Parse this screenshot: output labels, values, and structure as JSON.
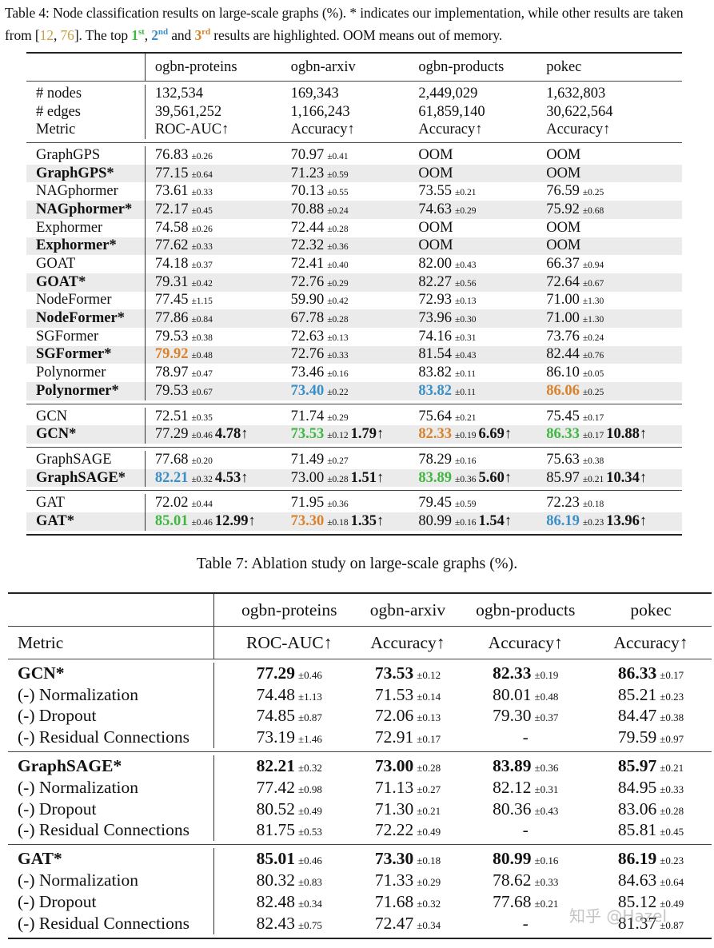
{
  "table4": {
    "caption": {
      "part1": "Table 4: Node classification results on large-scale graphs (%). * indicates our implementation, while other results are taken from [",
      "cite1": "12",
      "sep": ", ",
      "cite2": "76",
      "part2": "]. The top ",
      "first": "1",
      "first_sup": "st",
      "comma": ", ",
      "second": "2",
      "second_sup": "nd",
      "and": " and ",
      "third": "3",
      "third_sup": "rd",
      "part3": " results are highlighted. OOM means out of memory."
    },
    "columns": [
      "ogbn-proteins",
      "ogbn-arxiv",
      "ogbn-products",
      "pokec"
    ],
    "stats": [
      {
        "label": "# nodes",
        "values": [
          "132,534",
          "169,343",
          "2,449,029",
          "1,632,803"
        ]
      },
      {
        "label": "# edges",
        "values": [
          "39,561,252",
          "1,166,243",
          "61,859,140",
          "30,622,564"
        ]
      },
      {
        "label": "Metric",
        "values": [
          "ROC-AUC↑",
          "Accuracy↑",
          "Accuracy↑",
          "Accuracy↑"
        ]
      }
    ],
    "transformers": [
      {
        "name": "GraphGPS",
        "cells": [
          [
            "76.83",
            "±0.26"
          ],
          [
            "70.97",
            "±0.41"
          ],
          [
            "OOM",
            ""
          ],
          [
            "OOM",
            ""
          ]
        ]
      },
      {
        "name": "GraphGPS*",
        "cells": [
          [
            "77.15",
            "±0.64"
          ],
          [
            "71.23",
            "±0.59"
          ],
          [
            "OOM",
            ""
          ],
          [
            "OOM",
            ""
          ]
        ]
      },
      {
        "name": "NAGphormer",
        "cells": [
          [
            "73.61",
            "±0.33"
          ],
          [
            "70.13",
            "±0.55"
          ],
          [
            "73.55",
            "±0.21"
          ],
          [
            "76.59",
            "±0.25"
          ]
        ]
      },
      {
        "name": "NAGphormer*",
        "cells": [
          [
            "72.17",
            "±0.45"
          ],
          [
            "70.88",
            "±0.24"
          ],
          [
            "74.63",
            "±0.29"
          ],
          [
            "75.92",
            "±0.68"
          ]
        ]
      },
      {
        "name": "Exphormer",
        "cells": [
          [
            "74.58",
            "±0.26"
          ],
          [
            "72.44",
            "±0.28"
          ],
          [
            "OOM",
            ""
          ],
          [
            "OOM",
            ""
          ]
        ]
      },
      {
        "name": "Exphormer*",
        "cells": [
          [
            "77.62",
            "±0.33"
          ],
          [
            "72.32",
            "±0.36"
          ],
          [
            "OOM",
            ""
          ],
          [
            "OOM",
            ""
          ]
        ]
      },
      {
        "name": "GOAT",
        "cells": [
          [
            "74.18",
            "±0.37"
          ],
          [
            "72.41",
            "±0.40"
          ],
          [
            "82.00",
            "±0.43"
          ],
          [
            "66.37",
            "±0.94"
          ]
        ]
      },
      {
        "name": "GOAT*",
        "cells": [
          [
            "79.31",
            "±0.42"
          ],
          [
            "72.76",
            "±0.29"
          ],
          [
            "82.27",
            "±0.56"
          ],
          [
            "72.64",
            "±0.67"
          ]
        ]
      },
      {
        "name": "NodeFormer",
        "cells": [
          [
            "77.45",
            "±1.15"
          ],
          [
            "59.90",
            "±0.42"
          ],
          [
            "72.93",
            "±0.13"
          ],
          [
            "71.00",
            "±1.30"
          ]
        ]
      },
      {
        "name": "NodeFormer*",
        "cells": [
          [
            "77.86",
            "±0.84"
          ],
          [
            "67.78",
            "±0.28"
          ],
          [
            "73.96",
            "±0.30"
          ],
          [
            "71.00",
            "±1.30"
          ]
        ]
      },
      {
        "name": "SGFormer",
        "cells": [
          [
            "79.53",
            "±0.38"
          ],
          [
            "72.63",
            "±0.13"
          ],
          [
            "74.16",
            "±0.31"
          ],
          [
            "73.76",
            "±0.24"
          ]
        ]
      },
      {
        "name": "SGFormer*",
        "cells": [
          [
            "79.92",
            "±0.48"
          ],
          [
            "72.76",
            "±0.33"
          ],
          [
            "81.54",
            "±0.43"
          ],
          [
            "82.44",
            "±0.76"
          ]
        ]
      },
      {
        "name": "Polynormer",
        "cells": [
          [
            "78.97",
            "±0.47"
          ],
          [
            "73.46",
            "±0.16"
          ],
          [
            "83.82",
            "±0.11"
          ],
          [
            "86.10",
            "±0.05"
          ]
        ]
      },
      {
        "name": "Polynormer*",
        "cells": [
          [
            "79.53",
            "±0.67"
          ],
          [
            "73.40",
            "±0.22"
          ],
          [
            "83.82",
            "±0.11"
          ],
          [
            "86.06",
            "±0.25"
          ]
        ]
      }
    ],
    "gnn_groups": [
      [
        {
          "name": "GCN",
          "cells": [
            [
              "72.51",
              "±0.35",
              ""
            ],
            [
              "71.74",
              "±0.29",
              ""
            ],
            [
              "75.64",
              "±0.21",
              ""
            ],
            [
              "75.45",
              "±0.17",
              ""
            ]
          ]
        },
        {
          "name": "GCN*",
          "cells": [
            [
              "77.29",
              "±0.46",
              "4.78↑"
            ],
            [
              "73.53",
              "±0.12",
              "1.79↑"
            ],
            [
              "82.33",
              "±0.19",
              "6.69↑"
            ],
            [
              "86.33",
              "±0.17",
              "10.88↑"
            ]
          ]
        }
      ],
      [
        {
          "name": "GraphSAGE",
          "cells": [
            [
              "77.68",
              "±0.20",
              ""
            ],
            [
              "71.49",
              "±0.27",
              ""
            ],
            [
              "78.29",
              "±0.16",
              ""
            ],
            [
              "75.63",
              "±0.38",
              ""
            ]
          ]
        },
        {
          "name": "GraphSAGE*",
          "cells": [
            [
              "82.21",
              "±0.32",
              "4.53↑"
            ],
            [
              "73.00",
              "±0.28",
              "1.51↑"
            ],
            [
              "83.89",
              "±0.36",
              "5.60↑"
            ],
            [
              "85.97",
              "±0.21",
              "10.34↑"
            ]
          ]
        }
      ],
      [
        {
          "name": "GAT",
          "cells": [
            [
              "72.02",
              "±0.44",
              ""
            ],
            [
              "71.95",
              "±0.36",
              ""
            ],
            [
              "79.45",
              "±0.59",
              ""
            ],
            [
              "72.23",
              "±0.18",
              ""
            ]
          ]
        },
        {
          "name": "GAT*",
          "cells": [
            [
              "85.01",
              "±0.46",
              "12.99↑"
            ],
            [
              "73.30",
              "±0.18",
              "1.35↑"
            ],
            [
              "80.99",
              "±0.16",
              "1.54↑"
            ],
            [
              "86.19",
              "±0.23",
              "13.96↑"
            ]
          ]
        }
      ]
    ],
    "highlight_colors": {
      "first": "#3fb83f",
      "second": "#3a8fc8",
      "third": "#d9822b"
    }
  },
  "table7": {
    "caption": "Table 7: Ablation study on large-scale graphs (%).",
    "columns": [
      "ogbn-proteins",
      "ogbn-arxiv",
      "ogbn-products",
      "pokec"
    ],
    "metric_label": "Metric",
    "metrics": [
      "ROC-AUC↑",
      "Accuracy↑",
      "Accuracy↑",
      "Accuracy↑"
    ],
    "groups": [
      {
        "rows": [
          {
            "name": "GCN*",
            "cells": [
              [
                "77.29",
                "±0.46"
              ],
              [
                "73.53",
                "±0.12"
              ],
              [
                "82.33",
                "±0.19"
              ],
              [
                "86.33",
                "±0.17"
              ]
            ]
          },
          {
            "name": "(-) Normalization",
            "cells": [
              [
                "74.48",
                "±1.13"
              ],
              [
                "71.53",
                "±0.14"
              ],
              [
                "80.01",
                "±0.48"
              ],
              [
                "85.21",
                "±0.23"
              ]
            ]
          },
          {
            "name": "(-) Dropout",
            "cells": [
              [
                "74.85",
                "±0.87"
              ],
              [
                "72.06",
                "±0.13"
              ],
              [
                "79.30",
                "±0.37"
              ],
              [
                "84.47",
                "±0.38"
              ]
            ]
          },
          {
            "name": "(-) Residual Connections",
            "cells": [
              [
                "73.19",
                "±1.46"
              ],
              [
                "72.91",
                "±0.17"
              ],
              [
                "-",
                ""
              ],
              [
                "79.59",
                "±0.97"
              ]
            ]
          }
        ]
      },
      {
        "rows": [
          {
            "name": "GraphSAGE*",
            "cells": [
              [
                "82.21",
                "±0.32"
              ],
              [
                "73.00",
                "±0.28"
              ],
              [
                "83.89",
                "±0.36"
              ],
              [
                "85.97",
                "±0.21"
              ]
            ]
          },
          {
            "name": "(-) Normalization",
            "cells": [
              [
                "77.42",
                "±0.98"
              ],
              [
                "71.13",
                "±0.27"
              ],
              [
                "82.12",
                "±0.31"
              ],
              [
                "84.95",
                "±0.33"
              ]
            ]
          },
          {
            "name": "(-) Dropout",
            "cells": [
              [
                "80.52",
                "±0.49"
              ],
              [
                "71.30",
                "±0.21"
              ],
              [
                "80.36",
                "±0.43"
              ],
              [
                "83.06",
                "±0.28"
              ]
            ]
          },
          {
            "name": "(-) Residual Connections",
            "cells": [
              [
                "81.75",
                "±0.53"
              ],
              [
                "72.22",
                "±0.49"
              ],
              [
                "-",
                ""
              ],
              [
                "85.81",
                "±0.45"
              ]
            ]
          }
        ]
      },
      {
        "rows": [
          {
            "name": "GAT*",
            "cells": [
              [
                "85.01",
                "±0.46"
              ],
              [
                "73.30",
                "±0.18"
              ],
              [
                "80.99",
                "±0.16"
              ],
              [
                "86.19",
                "±0.23"
              ]
            ]
          },
          {
            "name": "(-) Normalization",
            "cells": [
              [
                "80.32",
                "±0.83"
              ],
              [
                "71.33",
                "±0.29"
              ],
              [
                "78.62",
                "±0.33"
              ],
              [
                "84.63",
                "±0.64"
              ]
            ]
          },
          {
            "name": "(-) Dropout",
            "cells": [
              [
                "82.48",
                "±0.34"
              ],
              [
                "71.68",
                "±0.32"
              ],
              [
                "77.68",
                "±0.21"
              ],
              [
                "85.12",
                "±0.49"
              ]
            ]
          },
          {
            "name": "(-) Residual Connections",
            "cells": [
              [
                "82.43",
                "±0.75"
              ],
              [
                "72.47",
                "±0.34"
              ],
              [
                "-",
                ""
              ],
              [
                "81.37",
                "±0.87"
              ]
            ]
          }
        ]
      }
    ]
  },
  "watermark": "知乎 @Hazel"
}
